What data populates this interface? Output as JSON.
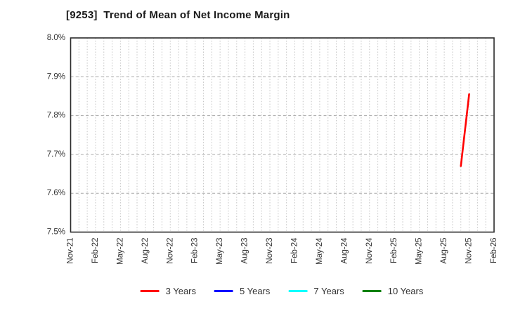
{
  "chart_data": {
    "type": "line",
    "title": "[9253]  Trend of Mean of Net Income Margin",
    "xlabel": "",
    "ylabel": "",
    "ylim": [
      7.5,
      8.0
    ],
    "y_ticks": [
      {
        "value": 8.0,
        "label": "8.0%"
      },
      {
        "value": 7.9,
        "label": "7.9%"
      },
      {
        "value": 7.8,
        "label": "7.8%"
      },
      {
        "value": 7.7,
        "label": "7.7%"
      },
      {
        "value": 7.6,
        "label": "7.6%"
      },
      {
        "value": 7.5,
        "label": "7.5%"
      }
    ],
    "x_ticks": [
      "Nov-21",
      "Feb-22",
      "May-22",
      "Aug-22",
      "Nov-22",
      "Feb-23",
      "May-23",
      "Aug-23",
      "Nov-23",
      "Feb-24",
      "May-24",
      "Aug-24",
      "Nov-24",
      "Feb-25",
      "May-25",
      "Aug-25",
      "Nov-25",
      "Feb-26"
    ],
    "x_minor_grid": "monthly",
    "grid": true,
    "legend_position": "bottom",
    "series": [
      {
        "name": "3 Years",
        "color": "#ff0000",
        "points": [
          {
            "x": "Oct-25",
            "y": 7.67
          },
          {
            "x": "Nov-25",
            "y": 7.855
          }
        ]
      },
      {
        "name": "5 Years",
        "color": "#0000ff",
        "points": []
      },
      {
        "name": "7 Years",
        "color": "#00ffff",
        "points": []
      },
      {
        "name": "10 Years",
        "color": "#008000",
        "points": []
      }
    ]
  },
  "style": {
    "background": "#ffffff",
    "frame_color": "#2a2a2a",
    "grid_major_color": "#a8a8a8",
    "grid_minor_color": "#c4c4c4",
    "text_color": "#333333",
    "title_color": "#1a1a1a"
  }
}
